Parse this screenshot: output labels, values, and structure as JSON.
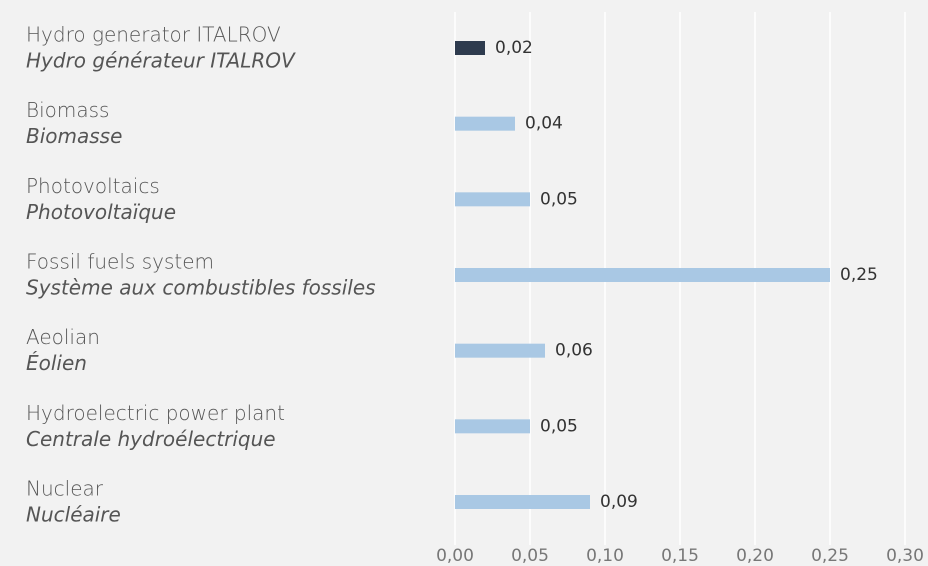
{
  "chart_data": {
    "type": "bar",
    "orientation": "horizontal",
    "categories": [
      "Hydro generator ITALROV",
      "Biomass",
      "Photovoltaics",
      "Fossil fuels system",
      "Aeolian",
      "Hydroelectric power plant",
      "Nuclear"
    ],
    "categories_translation": [
      "Hydro générateur ITALROV",
      "Biomasse",
      "Photovoltaïque",
      "Système aux combustibles fossiles",
      "Éolien",
      "Centrale hydroélectrique",
      "Nucléaire"
    ],
    "values": [
      0.02,
      0.04,
      0.05,
      0.25,
      0.06,
      0.05,
      0.09
    ],
    "value_labels": [
      "0,02",
      "0,04",
      "0,05",
      "0,25",
      "0,06",
      "0,05",
      "0,09"
    ],
    "colors": [
      "#2e3b4e",
      "#a9c8e4",
      "#a9c8e4",
      "#a9c8e4",
      "#a9c8e4",
      "#a9c8e4",
      "#a9c8e4"
    ],
    "xlim": [
      0,
      0.3
    ],
    "xticks": [
      {
        "value": 0,
        "label": "0,00"
      },
      {
        "value": 0.05,
        "label": "0,05"
      },
      {
        "value": 0.1,
        "label": "0,10"
      },
      {
        "value": 0.15,
        "label": "0,15"
      },
      {
        "value": 0.2,
        "label": "0,20"
      },
      {
        "value": 0.25,
        "label": "0,25"
      },
      {
        "value": 0.3,
        "label": "0,30"
      }
    ],
    "grid": true
  }
}
